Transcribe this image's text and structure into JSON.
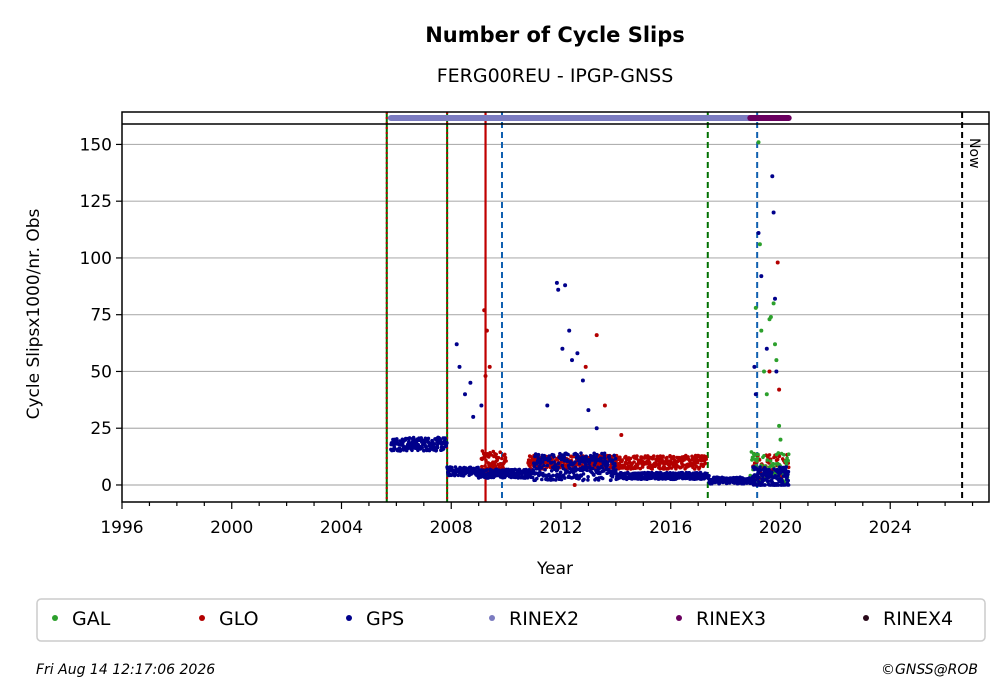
{
  "chart_data": {
    "type": "scatter",
    "title": "Number of Cycle Slips",
    "subtitle": "FERG00REU - IPGP-GNSS",
    "xlabel": "Year",
    "ylabel": "Cycle Slipsx1000/nr. Obs",
    "xlim": [
      1996,
      2027.6
    ],
    "ylim": [
      -7.5,
      159
    ],
    "x_ticks": [
      1996,
      2000,
      2004,
      2008,
      2012,
      2016,
      2020,
      2024
    ],
    "y_ticks": [
      0,
      25,
      50,
      75,
      100,
      125,
      150
    ],
    "grid": "horizontal",
    "legend_position": "bottom",
    "now_label": "Now",
    "now_x": 2026.62,
    "footer_left": "Fri Aug 14 12:17:06 2026",
    "footer_right": "©GNSS@ROB",
    "colors": {
      "GAL": "#2ca02c",
      "GLO": "#b30000",
      "GPS": "#00008b",
      "RINEX2": "#7b7bc0",
      "RINEX3": "#6a005f",
      "RINEX4": "#2a0a1a",
      "green_line": "#007000",
      "red_line": "#c00000",
      "blue_dash": "#1060b0",
      "grid": "#b0b0b0"
    },
    "legend": [
      "GAL",
      "GLO",
      "GPS",
      "RINEX2",
      "RINEX3",
      "RINEX4"
    ],
    "rinex_bars": [
      {
        "name": "RINEX2",
        "x_start": 2005.8,
        "x_end": 2018.9
      },
      {
        "name": "RINEX3",
        "x_start": 2018.9,
        "x_end": 2020.3
      }
    ],
    "vertical_lines": [
      {
        "x": 2005.65,
        "color": "green_line",
        "style": "dotted-red"
      },
      {
        "x": 2007.85,
        "color": "green_line",
        "style": "dotted-red"
      },
      {
        "x": 2009.25,
        "color": "red_line",
        "style": "solid"
      },
      {
        "x": 2009.85,
        "color": "blue_dash",
        "style": "dashed"
      },
      {
        "x": 2017.35,
        "color": "green_line",
        "style": "dashed"
      },
      {
        "x": 2019.15,
        "color": "blue_dash",
        "style": "dashed"
      }
    ],
    "series": [
      {
        "name": "GPS",
        "segments": [
          {
            "x_start": 2005.8,
            "x_end": 2007.85,
            "base": 18,
            "noise": 3,
            "step": 0.012
          },
          {
            "x_start": 2007.85,
            "x_end": 2009.0,
            "base": 6,
            "noise": 2,
            "step": 0.012
          },
          {
            "x_start": 2009.0,
            "x_end": 2011.0,
            "base": 5,
            "noise": 2,
            "step": 0.012
          },
          {
            "x_start": 2011.0,
            "x_end": 2014.0,
            "base": 8,
            "noise": 6,
            "step": 0.01
          },
          {
            "x_start": 2014.0,
            "x_end": 2017.4,
            "base": 4,
            "noise": 1.5,
            "step": 0.012
          },
          {
            "x_start": 2017.4,
            "x_end": 2019.0,
            "base": 2,
            "noise": 1.5,
            "step": 0.012
          },
          {
            "x_start": 2019.0,
            "x_end": 2020.3,
            "base": 3,
            "noise": 5,
            "step": 0.008
          }
        ],
        "outliers": [
          {
            "x": 2008.2,
            "y": 62
          },
          {
            "x": 2008.3,
            "y": 52
          },
          {
            "x": 2008.5,
            "y": 40
          },
          {
            "x": 2008.7,
            "y": 45
          },
          {
            "x": 2008.8,
            "y": 30
          },
          {
            "x": 2009.1,
            "y": 35
          },
          {
            "x": 2011.5,
            "y": 35
          },
          {
            "x": 2011.85,
            "y": 89
          },
          {
            "x": 2011.9,
            "y": 86
          },
          {
            "x": 2012.05,
            "y": 60
          },
          {
            "x": 2012.15,
            "y": 88
          },
          {
            "x": 2012.3,
            "y": 68
          },
          {
            "x": 2012.4,
            "y": 55
          },
          {
            "x": 2012.6,
            "y": 58
          },
          {
            "x": 2012.8,
            "y": 46
          },
          {
            "x": 2013.0,
            "y": 33
          },
          {
            "x": 2013.3,
            "y": 25
          },
          {
            "x": 2019.2,
            "y": 111
          },
          {
            "x": 2019.3,
            "y": 92
          },
          {
            "x": 2019.5,
            "y": 60
          },
          {
            "x": 2019.7,
            "y": 136
          },
          {
            "x": 2019.75,
            "y": 120
          },
          {
            "x": 2019.8,
            "y": 82
          },
          {
            "x": 2019.85,
            "y": 50
          },
          {
            "x": 2019.05,
            "y": 52
          },
          {
            "x": 2019.1,
            "y": 40
          }
        ]
      },
      {
        "name": "GLO",
        "segments": [
          {
            "x_start": 2009.1,
            "x_end": 2010.0,
            "base": 10,
            "noise": 5,
            "step": 0.012
          },
          {
            "x_start": 2010.8,
            "x_end": 2017.3,
            "base": 10,
            "noise": 3,
            "step": 0.012
          },
          {
            "x_start": 2019.0,
            "x_end": 2020.3,
            "base": 8,
            "noise": 6,
            "step": 0.02
          }
        ],
        "outliers": [
          {
            "x": 2009.2,
            "y": 77
          },
          {
            "x": 2009.3,
            "y": 68
          },
          {
            "x": 2009.4,
            "y": 52
          },
          {
            "x": 2009.25,
            "y": 48
          },
          {
            "x": 2012.9,
            "y": 52
          },
          {
            "x": 2013.3,
            "y": 66
          },
          {
            "x": 2013.6,
            "y": 35
          },
          {
            "x": 2014.2,
            "y": 22
          },
          {
            "x": 2012.5,
            "y": 0
          },
          {
            "x": 2019.9,
            "y": 98
          },
          {
            "x": 2019.6,
            "y": 50
          },
          {
            "x": 2019.95,
            "y": 42
          }
        ]
      },
      {
        "name": "GAL",
        "segments": [
          {
            "x_start": 2018.9,
            "x_end": 2020.3,
            "base": 8,
            "noise": 7,
            "step": 0.02
          }
        ],
        "outliers": [
          {
            "x": 2019.1,
            "y": 78
          },
          {
            "x": 2019.2,
            "y": 151
          },
          {
            "x": 2019.25,
            "y": 106
          },
          {
            "x": 2019.3,
            "y": 68
          },
          {
            "x": 2019.4,
            "y": 50
          },
          {
            "x": 2019.5,
            "y": 40
          },
          {
            "x": 2019.6,
            "y": 73
          },
          {
            "x": 2019.65,
            "y": 74
          },
          {
            "x": 2019.75,
            "y": 80
          },
          {
            "x": 2019.8,
            "y": 62
          },
          {
            "x": 2019.85,
            "y": 55
          },
          {
            "x": 2019.95,
            "y": 26
          },
          {
            "x": 2020.0,
            "y": 20
          }
        ]
      }
    ]
  }
}
